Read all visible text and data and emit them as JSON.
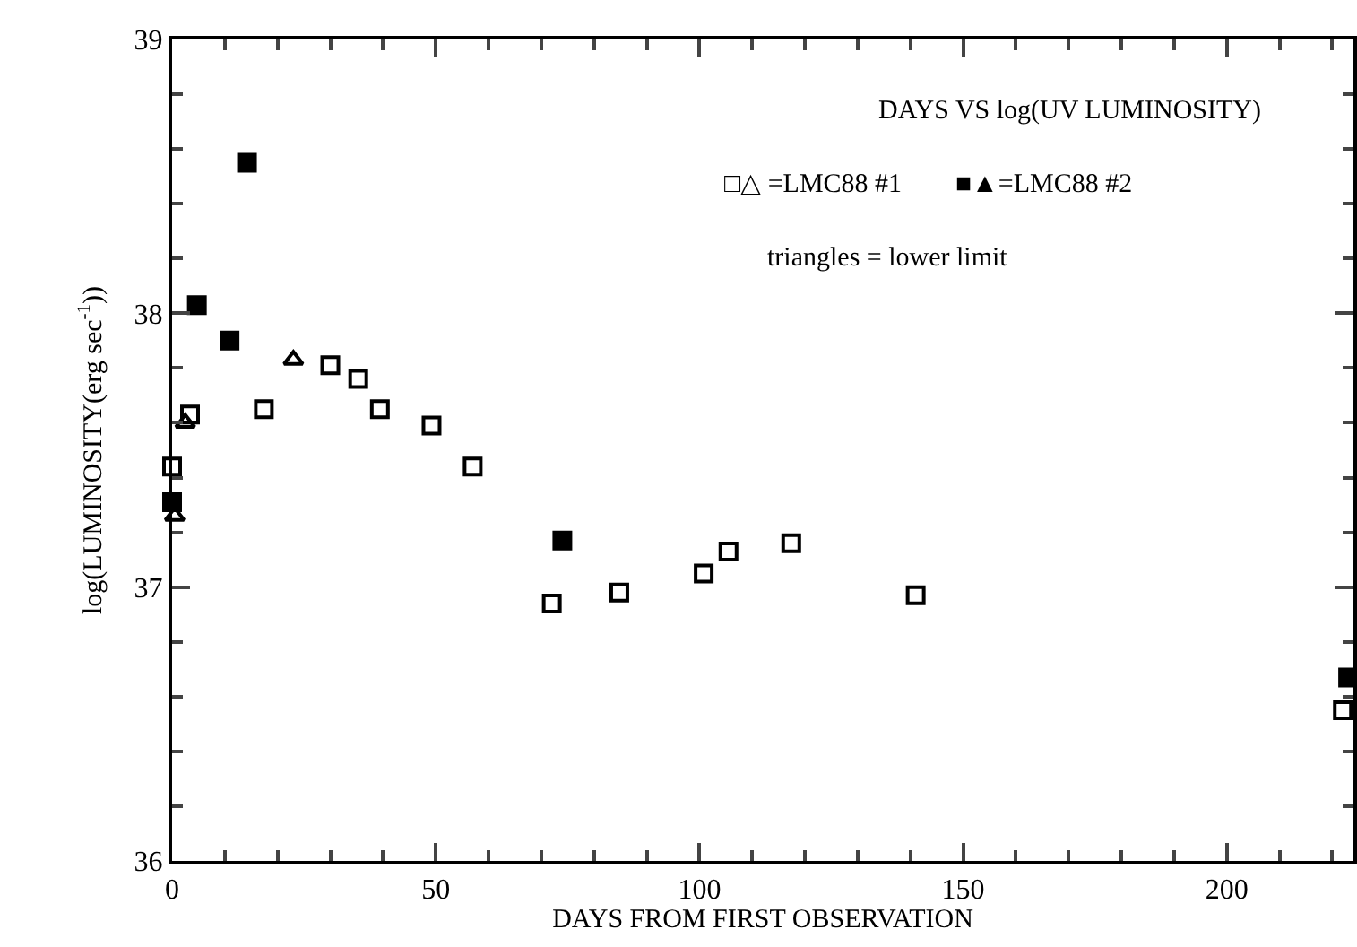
{
  "chart_data": {
    "type": "scatter",
    "title": "DAYS VS log(UV LUMINOSITY)",
    "xlabel": "DAYS FROM FIRST OBSERVATION",
    "ylabel": "log(LUMINOSITY(erg sec$^{-1}$))",
    "annotations": [
      "□△ =LMC88 #1",
      "■▲=LMC88 #2",
      "triangles = lower limit"
    ],
    "xlim": [
      0,
      224
    ],
    "xticks": [
      0,
      50,
      100,
      150,
      200
    ],
    "ylim": [
      36,
      39
    ],
    "yticks": [
      36,
      37,
      38,
      39
    ],
    "series": [
      {
        "color": "#000000",
        "marker": "square",
        "x": [
          0,
          3.4,
          17.4,
          30,
          35.3,
          39.4,
          49.2,
          57,
          72,
          84.8,
          100.8,
          105.5,
          117.4,
          141,
          222
        ],
        "values": [
          37.44,
          37.63,
          37.65,
          37.81,
          37.76,
          37.65,
          37.59,
          37.44,
          36.94,
          36.98,
          37.05,
          37.13,
          37.16,
          36.97,
          36.55
        ]
      },
      {
        "color": "#000000",
        "marker": "triangle",
        "x": [
          0.5,
          2.5,
          23
        ],
        "values": [
          37.26,
          37.6,
          37.83
        ]
      },
      {
        "color": "#000000",
        "marker": "square",
        "x": [
          0,
          4.7,
          10.9,
          14.2,
          74,
          223
        ],
        "values": [
          37.31,
          38.03,
          37.9,
          38.55,
          37.17,
          36.67
        ]
      }
    ]
  }
}
